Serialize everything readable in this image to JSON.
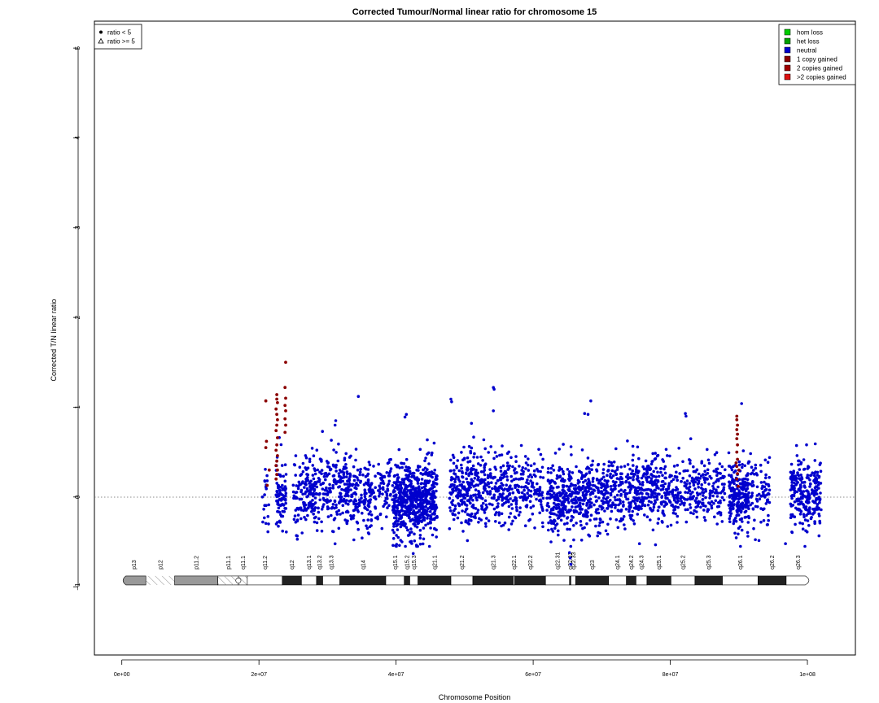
{
  "chart_data": {
    "type": "scatter",
    "title": "Corrected Tumour/Normal linear ratio for chromosome  15",
    "xlabel": "Chromosome Position",
    "ylabel": "Corrected T/N linear ratio",
    "xlim": [
      -4000000,
      107000000
    ],
    "ylim": [
      -1.76,
      5.3
    ],
    "x_ticks": [
      0,
      20000000,
      40000000,
      60000000,
      80000000,
      100000000
    ],
    "x_tick_labels": [
      "0e+00",
      "2e+07",
      "4e+07",
      "6e+07",
      "8e+07",
      "1e+08"
    ],
    "y_ticks": [
      -1,
      0,
      1,
      2,
      3,
      4,
      5
    ],
    "y_tick_labels": [
      "−1",
      "0",
      "1",
      "2",
      "3",
      "4",
      "5"
    ],
    "reference_line_y": 0,
    "grid": false,
    "colors": {
      "hom_loss": "#00cc00",
      "het_loss": "#00a000",
      "neutral": "#0000cd",
      "gain1": "#8b0000",
      "gain2": "#a00000",
      "gain_more": "#dd1111"
    },
    "legend_states": {
      "position": "top-right",
      "entries": [
        {
          "label": "hom loss",
          "color": "#00cc00"
        },
        {
          "label": "het loss",
          "color": "#00a000"
        },
        {
          "label": "neutral",
          "color": "#0000cd"
        },
        {
          "label": "1 copy gained",
          "color": "#8b0000"
        },
        {
          "label": "2 copies gained",
          "color": "#a00000"
        },
        {
          "label": ">2 copies gained",
          "color": "#dd1111"
        }
      ]
    },
    "legend_shapes": {
      "position": "top-left",
      "entries": [
        {
          "label": "ratio < 5",
          "shape": "filled-circle"
        },
        {
          "label": "ratio >= 5",
          "shape": "open-triangle"
        }
      ]
    },
    "neutral_segments": [
      {
        "x": [
          20500000,
          21500000
        ],
        "mean": 0.02,
        "sd": 0.2,
        "n": 20
      },
      {
        "x": [
          22500000,
          24000000
        ],
        "mean": 0.0,
        "sd": 0.2,
        "n": 80
      },
      {
        "x": [
          25000000,
          28000000
        ],
        "mean": 0.05,
        "sd": 0.2,
        "n": 130
      },
      {
        "x": [
          28000000,
          33500000
        ],
        "mean": 0.1,
        "sd": 0.2,
        "n": 230
      },
      {
        "x": [
          33500000,
          36500000
        ],
        "mean": 0.0,
        "sd": 0.2,
        "n": 130
      },
      {
        "x": [
          36500000,
          39500000
        ],
        "mean": 0.05,
        "sd": 0.2,
        "n": 70
      },
      {
        "x": [
          39500000,
          46000000
        ],
        "mean": -0.05,
        "sd": 0.2,
        "n": 650
      },
      {
        "x": [
          47800000,
          53000000
        ],
        "mean": 0.1,
        "sd": 0.2,
        "n": 260
      },
      {
        "x": [
          53000000,
          61500000
        ],
        "mean": 0.1,
        "sd": 0.2,
        "n": 300
      },
      {
        "x": [
          62000000,
          70000000
        ],
        "mean": 0.0,
        "sd": 0.2,
        "n": 420
      },
      {
        "x": [
          70000000,
          79000000
        ],
        "mean": 0.08,
        "sd": 0.18,
        "n": 400
      },
      {
        "x": [
          79000000,
          88000000
        ],
        "mean": 0.05,
        "sd": 0.18,
        "n": 300
      },
      {
        "x": [
          88500000,
          91500000
        ],
        "mean": 0.0,
        "sd": 0.2,
        "n": 220
      },
      {
        "x": [
          91500000,
          94500000
        ],
        "mean": 0.05,
        "sd": 0.2,
        "n": 80
      },
      {
        "x": [
          97500000,
          102000000
        ],
        "mean": 0.05,
        "sd": 0.2,
        "n": 250
      }
    ],
    "gain_points": [
      [
        21000000,
        1.07
      ],
      [
        21100000,
        0.62
      ],
      [
        21000000,
        0.55
      ],
      [
        21200000,
        0.13
      ],
      [
        21500000,
        0.3
      ],
      [
        22600000,
        1.14
      ],
      [
        22600000,
        1.09
      ],
      [
        22700000,
        1.05
      ],
      [
        22500000,
        0.98
      ],
      [
        22600000,
        0.92
      ],
      [
        22700000,
        0.86
      ],
      [
        22600000,
        0.8
      ],
      [
        22500000,
        0.74
      ],
      [
        22700000,
        0.66
      ],
      [
        22600000,
        0.58
      ],
      [
        22500000,
        0.52
      ],
      [
        22700000,
        0.46
      ],
      [
        22600000,
        0.4
      ],
      [
        22500000,
        0.35
      ],
      [
        22700000,
        0.3
      ],
      [
        22600000,
        0.25
      ],
      [
        22500000,
        0.2
      ],
      [
        23900000,
        1.5
      ],
      [
        23800000,
        1.22
      ],
      [
        23900000,
        1.1
      ],
      [
        23800000,
        1.02
      ],
      [
        23900000,
        0.96
      ],
      [
        23800000,
        0.87
      ],
      [
        23900000,
        0.8
      ],
      [
        23800000,
        0.72
      ],
      [
        89700000,
        0.9
      ],
      [
        89700000,
        0.86
      ],
      [
        89800000,
        0.8
      ],
      [
        89700000,
        0.75
      ],
      [
        89800000,
        0.7
      ],
      [
        89700000,
        0.65
      ],
      [
        89800000,
        0.58
      ],
      [
        89700000,
        0.5
      ],
      [
        89800000,
        0.42
      ],
      [
        89700000,
        0.34
      ],
      [
        89800000,
        0.26
      ],
      [
        89700000,
        0.2
      ],
      [
        89900000,
        0.12
      ],
      [
        90000000,
        0.3
      ],
      [
        89600000,
        0.38
      ]
    ],
    "outlier_points": [
      [
        34500000,
        1.12
      ],
      [
        48000000,
        1.09
      ],
      [
        48100000,
        1.06
      ],
      [
        54200000,
        1.22
      ],
      [
        54300000,
        1.2
      ],
      [
        54200000,
        0.96
      ],
      [
        68400000,
        1.07
      ],
      [
        67500000,
        0.93
      ],
      [
        68000000,
        0.92
      ],
      [
        82200000,
        0.93
      ],
      [
        82300000,
        0.9
      ],
      [
        90400000,
        1.04
      ],
      [
        41500000,
        0.92
      ],
      [
        41300000,
        0.89
      ],
      [
        31200000,
        0.85
      ],
      [
        31100000,
        0.8
      ],
      [
        65300000,
        -0.62
      ],
      [
        65400000,
        -0.68
      ],
      [
        65500000,
        -0.75
      ],
      [
        42500000,
        -0.63
      ],
      [
        43000000,
        -0.55
      ],
      [
        62600000,
        -0.5
      ],
      [
        96800000,
        -0.52
      ],
      [
        75500000,
        -0.52
      ],
      [
        51000000,
        0.82
      ]
    ],
    "ideogram": {
      "y": -0.93,
      "bands": [
        {
          "label": "p13",
          "start": 0,
          "end": 3500000,
          "stain": "gpos",
          "shade": "#999999"
        },
        {
          "label": "p12",
          "start": 3500000,
          "end": 7700000,
          "stain": "stalk",
          "shade": "#cccccc"
        },
        {
          "label": "p11.2",
          "start": 7700000,
          "end": 14000000,
          "stain": "gpos",
          "shade": "#999999"
        },
        {
          "label": "p11.1",
          "start": 14000000,
          "end": 17000000,
          "stain": "gvar",
          "shade": "#bbbbbb"
        },
        {
          "label": "q11.1",
          "start": 17000000,
          "end": 18300000,
          "stain": "gvar",
          "shade": "#bbbbbb"
        },
        {
          "label": "q11.2",
          "start": 18300000,
          "end": 23400000,
          "stain": "gneg",
          "shade": "#ffffff"
        },
        {
          "label": "q12",
          "start": 23400000,
          "end": 26200000,
          "stain": "gpos",
          "shade": "#222222"
        },
        {
          "label": "q13.1",
          "start": 26200000,
          "end": 28400000,
          "stain": "gneg",
          "shade": "#ffffff"
        },
        {
          "label": "q13.2",
          "start": 28400000,
          "end": 29300000,
          "stain": "gpos",
          "shade": "#222222"
        },
        {
          "label": "q13.3",
          "start": 29300000,
          "end": 31800000,
          "stain": "gneg",
          "shade": "#ffffff"
        },
        {
          "label": "q14",
          "start": 31800000,
          "end": 38500000,
          "stain": "gpos",
          "shade": "#222222"
        },
        {
          "label": "q15.1",
          "start": 38500000,
          "end": 41200000,
          "stain": "gneg",
          "shade": "#ffffff"
        },
        {
          "label": "q15.2",
          "start": 41200000,
          "end": 42000000,
          "stain": "gpos",
          "shade": "#222222"
        },
        {
          "label": "q15.3",
          "start": 42000000,
          "end": 43200000,
          "stain": "gneg",
          "shade": "#ffffff"
        },
        {
          "label": "q21.1",
          "start": 43200000,
          "end": 48000000,
          "stain": "gpos",
          "shade": "#222222"
        },
        {
          "label": "q21.2",
          "start": 48000000,
          "end": 51200000,
          "stain": "gneg",
          "shade": "#ffffff"
        },
        {
          "label": "q21.3",
          "start": 51200000,
          "end": 57100000,
          "stain": "gpos",
          "shade": "#222222"
        },
        {
          "label": "q22.1",
          "start": 57100000,
          "end": 57300000,
          "stain": "gneg",
          "shade": "#ffffff"
        },
        {
          "label": "q22.2",
          "start": 57300000,
          "end": 61800000,
          "stain": "gpos",
          "shade": "#222222"
        },
        {
          "label": "q22.31",
          "start": 61800000,
          "end": 65300000,
          "stain": "gneg",
          "shade": "#ffffff"
        },
        {
          "label": "q22.32",
          "start": 65300000,
          "end": 65500000,
          "stain": "gpos",
          "shade": "#222222"
        },
        {
          "label": "q22.33",
          "start": 65500000,
          "end": 66200000,
          "stain": "gneg",
          "shade": "#ffffff"
        },
        {
          "label": "q23",
          "start": 66200000,
          "end": 71000000,
          "stain": "gpos",
          "shade": "#222222"
        },
        {
          "label": "q24.1",
          "start": 71000000,
          "end": 73600000,
          "stain": "gneg",
          "shade": "#ffffff"
        },
        {
          "label": "q24.2",
          "start": 73600000,
          "end": 75000000,
          "stain": "gpos",
          "shade": "#222222"
        },
        {
          "label": "q24.3",
          "start": 75000000,
          "end": 76600000,
          "stain": "gneg",
          "shade": "#ffffff"
        },
        {
          "label": "q25.1",
          "start": 76600000,
          "end": 80100000,
          "stain": "gpos",
          "shade": "#222222"
        },
        {
          "label": "q25.2",
          "start": 80100000,
          "end": 83600000,
          "stain": "gneg",
          "shade": "#ffffff"
        },
        {
          "label": "q25.3",
          "start": 83600000,
          "end": 87600000,
          "stain": "gpos",
          "shade": "#222222"
        },
        {
          "label": "q26.1",
          "start": 87600000,
          "end": 92800000,
          "stain": "gneg",
          "shade": "#ffffff"
        },
        {
          "label": "q26.2",
          "start": 92800000,
          "end": 96900000,
          "stain": "gpos",
          "shade": "#222222"
        },
        {
          "label": "q26.3",
          "start": 96900000,
          "end": 100400000,
          "stain": "gneg",
          "shade": "#ffffff"
        }
      ]
    }
  }
}
